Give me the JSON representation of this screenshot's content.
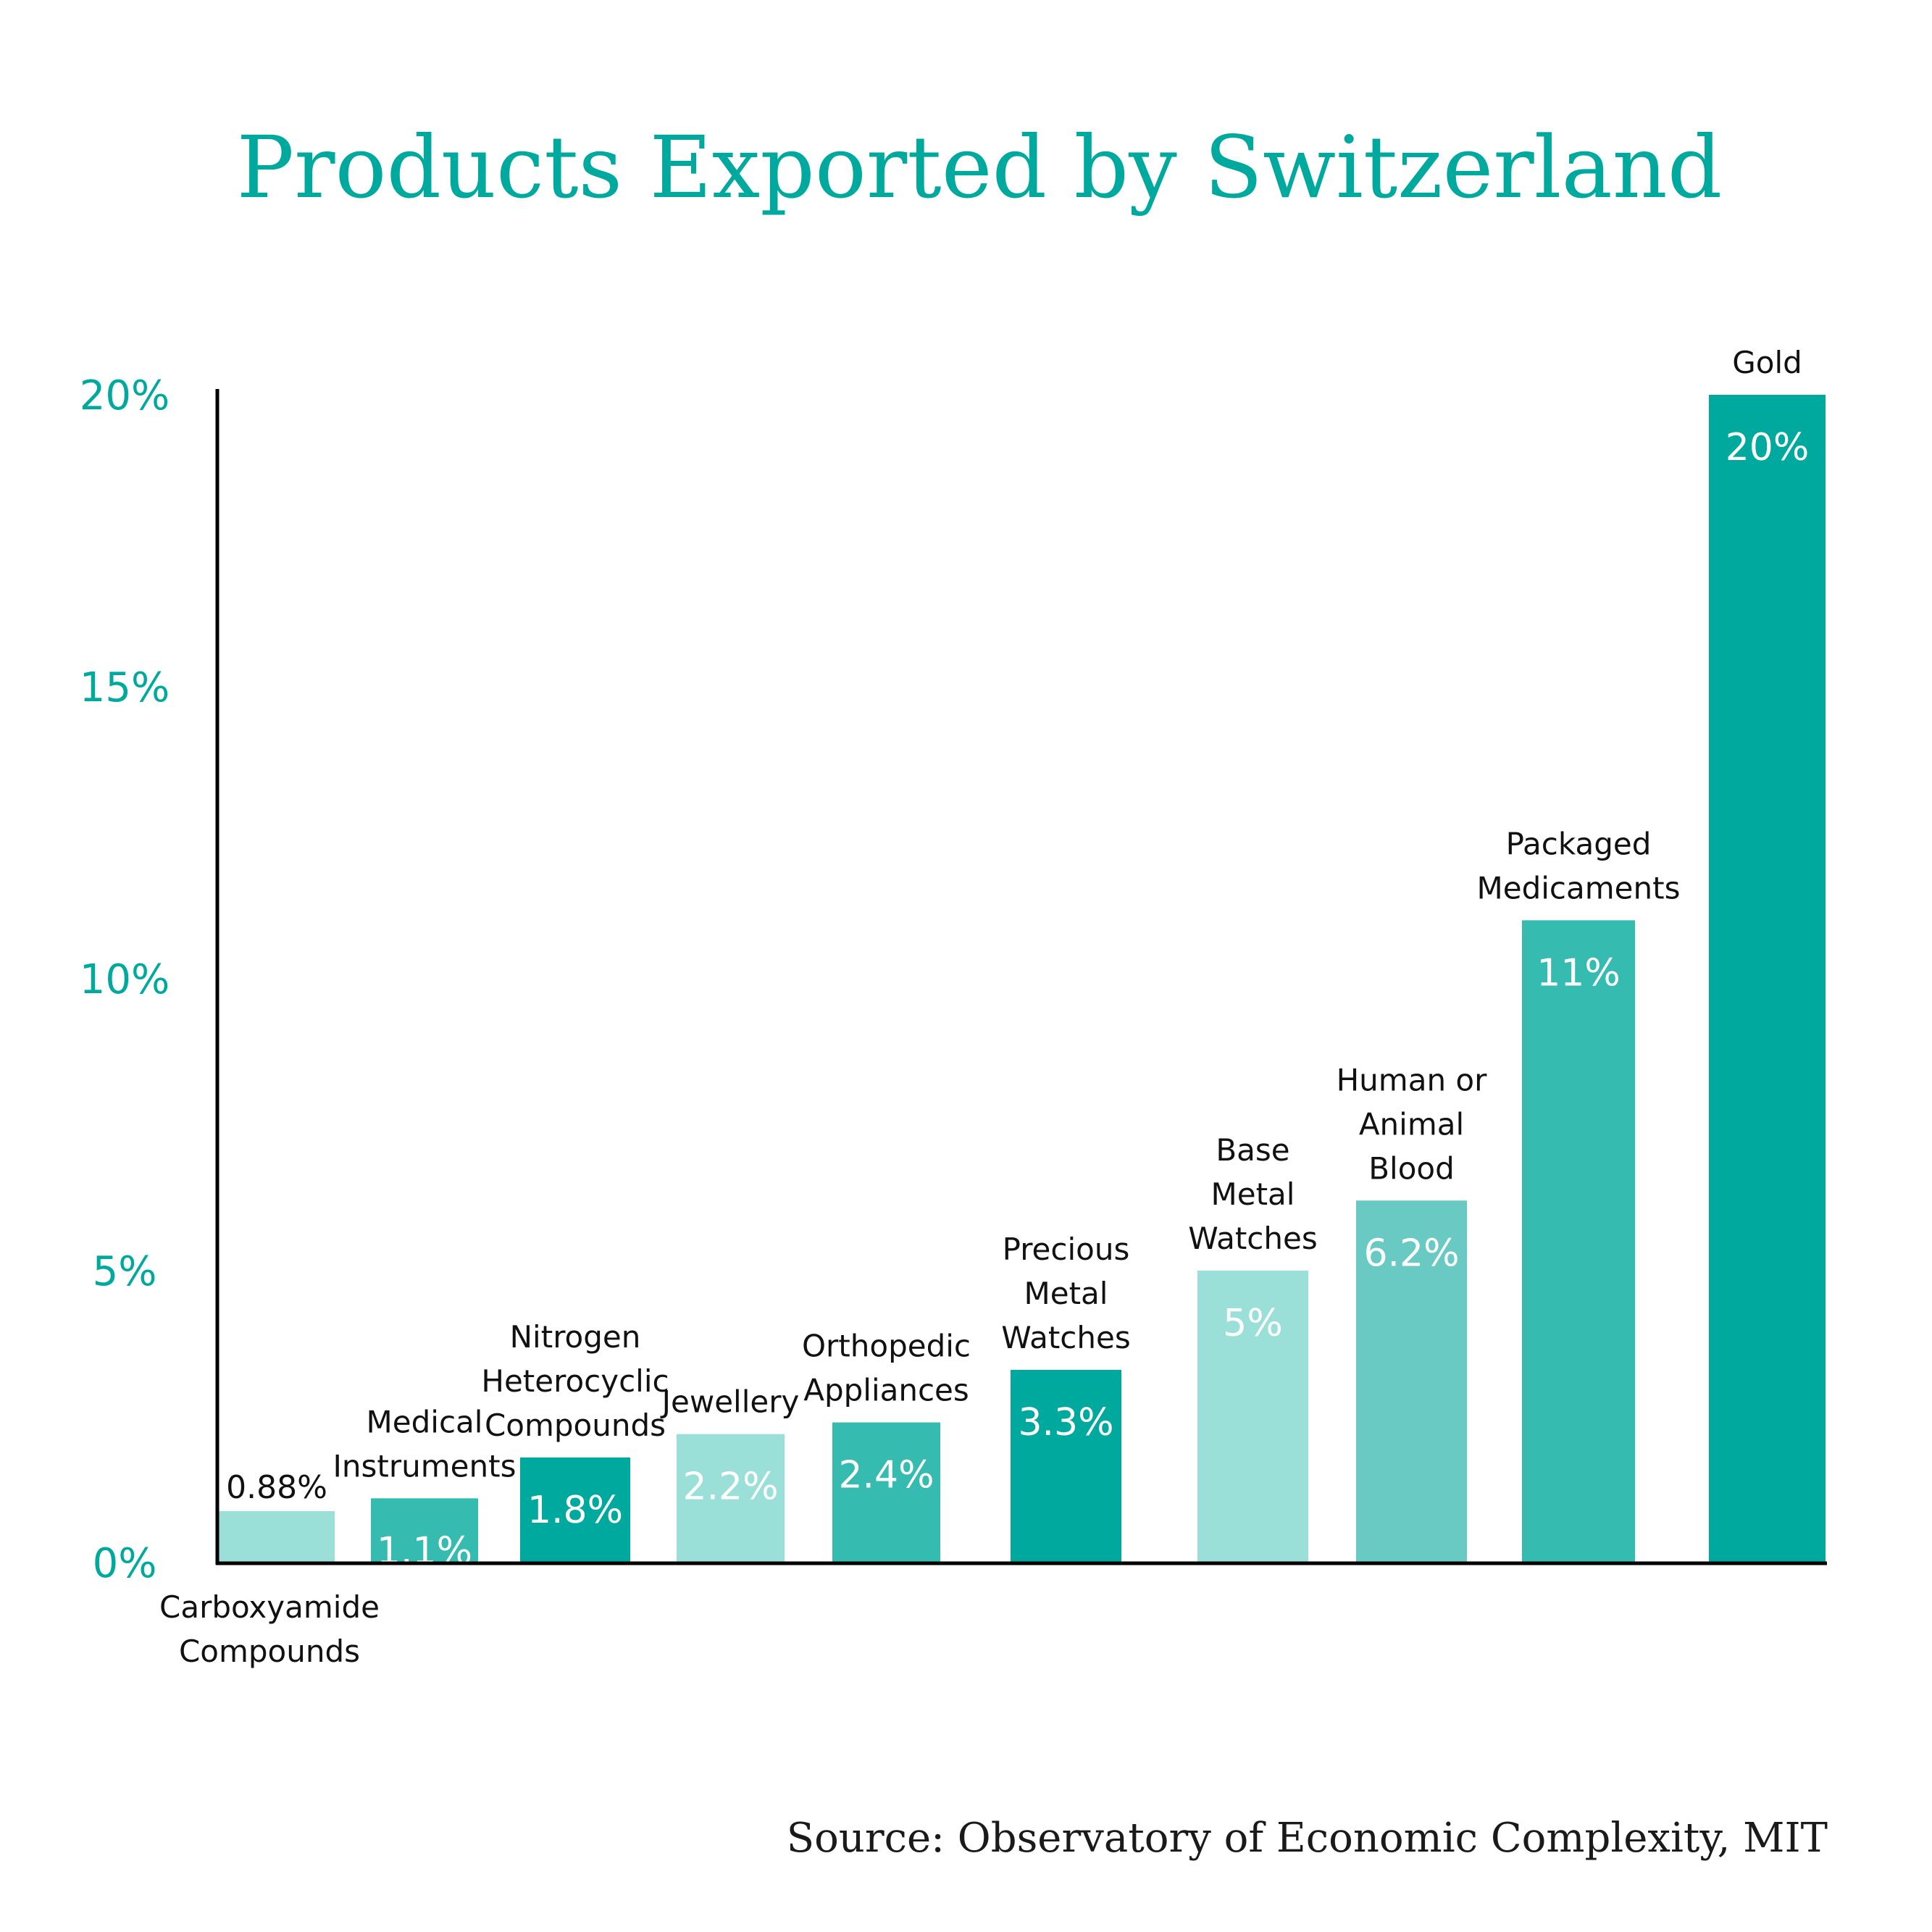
{
  "chart_data": {
    "type": "bar",
    "title": "Products Exported by Switzerland",
    "source": "Source: Observatory of Economic Complexity, MIT",
    "xlabel": "",
    "ylabel": "",
    "ylim": [
      0,
      20
    ],
    "grid": false,
    "legend": "none",
    "yticks": [
      {
        "value": 0,
        "label": "0%"
      },
      {
        "value": 5,
        "label": "5%"
      },
      {
        "value": 10,
        "label": "10%"
      },
      {
        "value": 15,
        "label": "15%"
      },
      {
        "value": 20,
        "label": "20%"
      }
    ],
    "categories": [
      [
        "Carboxyamide",
        "Compounds"
      ],
      [
        "Medical",
        "Instruments"
      ],
      [
        "Nitrogen",
        "Heterocyclic",
        "Compounds"
      ],
      [
        "Jewellery"
      ],
      [
        "Orthopedic",
        "Appliances"
      ],
      [
        "Precious",
        "Metal",
        "Watches"
      ],
      [
        "Base",
        "Metal",
        "Watches"
      ],
      [
        "Human or",
        "Animal",
        "Blood"
      ],
      [
        "Packaged",
        "Medicaments"
      ],
      [
        "Gold"
      ]
    ],
    "values": [
      0.88,
      1.1,
      1.8,
      2.2,
      2.4,
      3.3,
      5,
      6.2,
      11,
      20
    ],
    "value_labels": [
      "0.88%",
      "1.1%",
      "1.8%",
      "2.2%",
      "2.4%",
      "3.3%",
      "5%",
      "6.2%",
      "11%",
      "20%"
    ],
    "colors": [
      "#9adfd8",
      "#35bbb0",
      "#00a99d",
      "#9adfd8",
      "#35bbb0",
      "#00a99d",
      "#9adfd8",
      "#68cac3",
      "#35bbb0",
      "#00a99d"
    ],
    "label_position": [
      "below-axis",
      "above",
      "above",
      "above",
      "above",
      "above",
      "above",
      "above",
      "above",
      "above"
    ],
    "value_label_position": [
      "outside",
      "inside",
      "inside",
      "inside",
      "inside",
      "inside",
      "inside",
      "inside",
      "inside",
      "inside"
    ]
  }
}
